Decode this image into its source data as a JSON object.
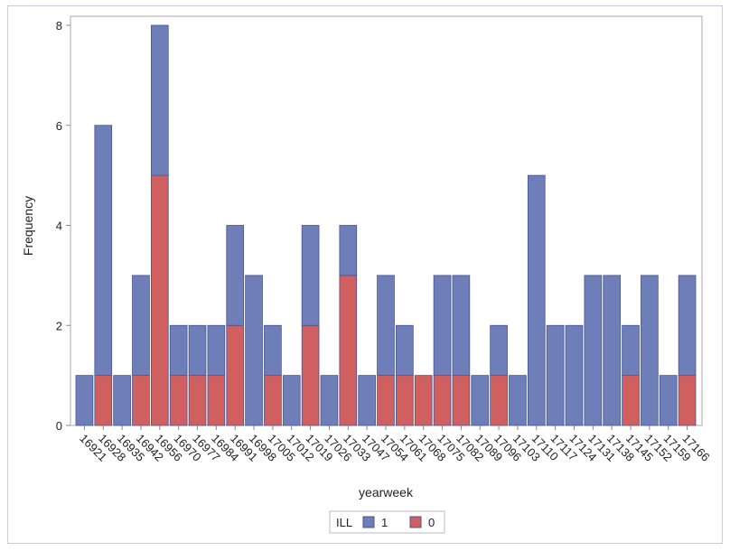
{
  "chart_data": {
    "type": "bar",
    "stacked": true,
    "xlabel": "yearweek",
    "ylabel": "Frequency",
    "ylim": [
      0,
      8
    ],
    "yticks": [
      0,
      2,
      4,
      6,
      8
    ],
    "grid": false,
    "legend": {
      "title": "ILL",
      "placement": "bottom"
    },
    "categories": [
      "16921",
      "16928",
      "16935",
      "16942",
      "16956",
      "16970",
      "16977",
      "16984",
      "16991",
      "16998",
      "17005",
      "17012",
      "17019",
      "17026",
      "17033",
      "17047",
      "17054",
      "17061",
      "17068",
      "17075",
      "17082",
      "17089",
      "17096",
      "17103",
      "17110",
      "17117",
      "17124",
      "17131",
      "17138",
      "17145",
      "17152",
      "17159",
      "17166"
    ],
    "series": [
      {
        "name": "0",
        "color": "#D05F5F",
        "values": [
          0,
          1,
          0,
          1,
          5,
          1,
          1,
          1,
          2,
          0,
          1,
          0,
          2,
          0,
          3,
          0,
          1,
          1,
          1,
          1,
          1,
          0,
          1,
          0,
          0,
          0,
          0,
          0,
          0,
          1,
          0,
          0,
          1
        ]
      },
      {
        "name": "1",
        "color": "#6E7EB8",
        "values": [
          1,
          5,
          1,
          2,
          3,
          1,
          1,
          1,
          2,
          3,
          1,
          1,
          2,
          1,
          1,
          1,
          2,
          1,
          0,
          2,
          2,
          1,
          1,
          1,
          5,
          2,
          2,
          3,
          3,
          1,
          3,
          1,
          2
        ]
      }
    ],
    "legend_order": [
      "1",
      "0"
    ]
  }
}
